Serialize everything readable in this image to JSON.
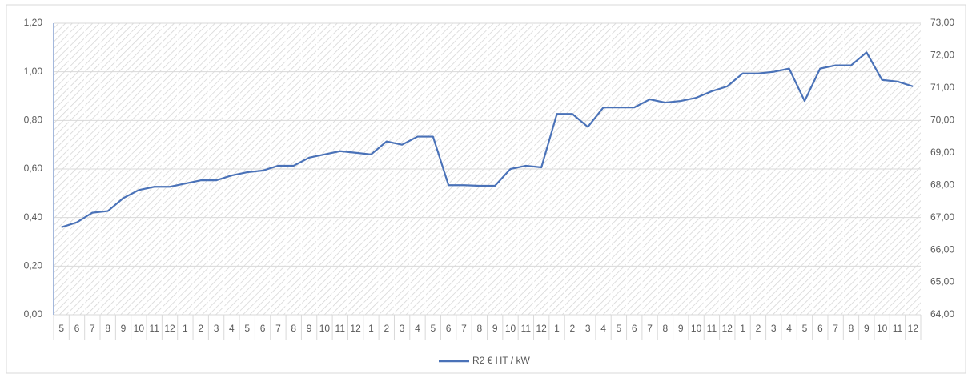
{
  "chart_data": {
    "type": "line",
    "categories": [
      "5",
      "6",
      "7",
      "8",
      "9",
      "10",
      "11",
      "12",
      "1",
      "2",
      "3",
      "4",
      "5",
      "6",
      "7",
      "8",
      "9",
      "10",
      "11",
      "12",
      "1",
      "2",
      "3",
      "4",
      "5",
      "6",
      "7",
      "8",
      "9",
      "10",
      "11",
      "12",
      "1",
      "2",
      "3",
      "4",
      "5",
      "6",
      "7",
      "8",
      "9",
      "10",
      "11",
      "12",
      "1",
      "2",
      "3",
      "4",
      "5",
      "6",
      "7",
      "8",
      "9",
      "10",
      "11",
      "12"
    ],
    "series": [
      {
        "name": "R2 € HT / kW",
        "color": "#4a72b8",
        "axis": "y2",
        "values": [
          66.7,
          66.85,
          67.15,
          67.2,
          67.6,
          67.85,
          67.95,
          67.95,
          68.05,
          68.15,
          68.15,
          68.3,
          68.4,
          68.45,
          68.6,
          68.6,
          68.85,
          68.95,
          69.05,
          69.0,
          68.95,
          69.35,
          69.25,
          69.5,
          69.5,
          68.0,
          68.0,
          67.98,
          67.98,
          68.5,
          68.6,
          68.55,
          70.2,
          70.2,
          69.8,
          70.4,
          70.4,
          70.4,
          70.65,
          70.55,
          70.6,
          70.7,
          70.9,
          71.05,
          71.45,
          71.45,
          71.5,
          71.6,
          70.6,
          71.6,
          71.7,
          71.7,
          72.1,
          71.25,
          71.2,
          71.05
        ]
      }
    ],
    "ylim": [
      0,
      1.2
    ],
    "yticks": [
      {
        "value": 0,
        "label": "0,00"
      },
      {
        "value": 0.2,
        "label": "0,20"
      },
      {
        "value": 0.4,
        "label": "0,40"
      },
      {
        "value": 0.6,
        "label": "0,60"
      },
      {
        "value": 0.8,
        "label": "0,80"
      },
      {
        "value": 1.0,
        "label": "1,00"
      },
      {
        "value": 1.2,
        "label": "1,20"
      }
    ],
    "y2lim": [
      64,
      73
    ],
    "y2ticks": [
      {
        "value": 64,
        "label": "64,00"
      },
      {
        "value": 65,
        "label": "65,00"
      },
      {
        "value": 66,
        "label": "66,00"
      },
      {
        "value": 67,
        "label": "67,00"
      },
      {
        "value": 68,
        "label": "68,00"
      },
      {
        "value": 69,
        "label": "69,00"
      },
      {
        "value": 70,
        "label": "70,00"
      },
      {
        "value": 71,
        "label": "71,00"
      },
      {
        "value": 72,
        "label": "72,00"
      },
      {
        "value": 73,
        "label": "73,00"
      }
    ],
    "grid": true,
    "legend": "bottom"
  }
}
